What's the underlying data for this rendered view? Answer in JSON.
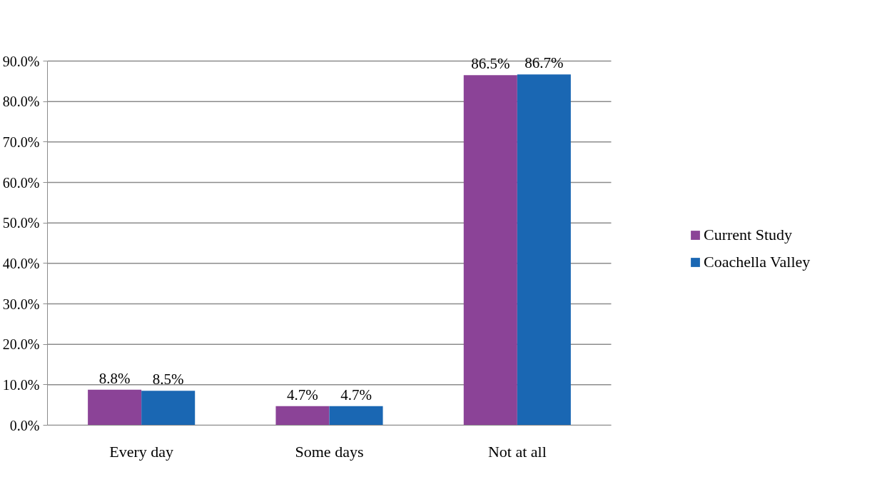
{
  "chart_data": {
    "type": "bar",
    "categories": [
      "Every day",
      "Some days",
      "Not at all"
    ],
    "series": [
      {
        "name": "Current Study",
        "color": "#8b4397",
        "values": [
          8.8,
          4.7,
          86.5
        ],
        "value_labels": [
          "8.8%",
          "4.7%",
          "86.5%"
        ]
      },
      {
        "name": "Coachella Valley",
        "color": "#1a67b3",
        "values": [
          8.5,
          4.7,
          86.7
        ],
        "value_labels": [
          "8.5%",
          "4.7%",
          "86.7%"
        ]
      }
    ],
    "ylim": [
      0,
      90
    ],
    "yticks": [
      {
        "value": 0,
        "label": "0.0%"
      },
      {
        "value": 10,
        "label": "10.0%"
      },
      {
        "value": 20,
        "label": "20.0%"
      },
      {
        "value": 30,
        "label": "30.0%"
      },
      {
        "value": 40,
        "label": "40.0%"
      },
      {
        "value": 50,
        "label": "50.0%"
      },
      {
        "value": 60,
        "label": "60.0%"
      },
      {
        "value": 70,
        "label": "70.0%"
      },
      {
        "value": 80,
        "label": "80.0%"
      },
      {
        "value": 90,
        "label": "90.0%"
      }
    ],
    "grid": "y",
    "legend": "right"
  }
}
